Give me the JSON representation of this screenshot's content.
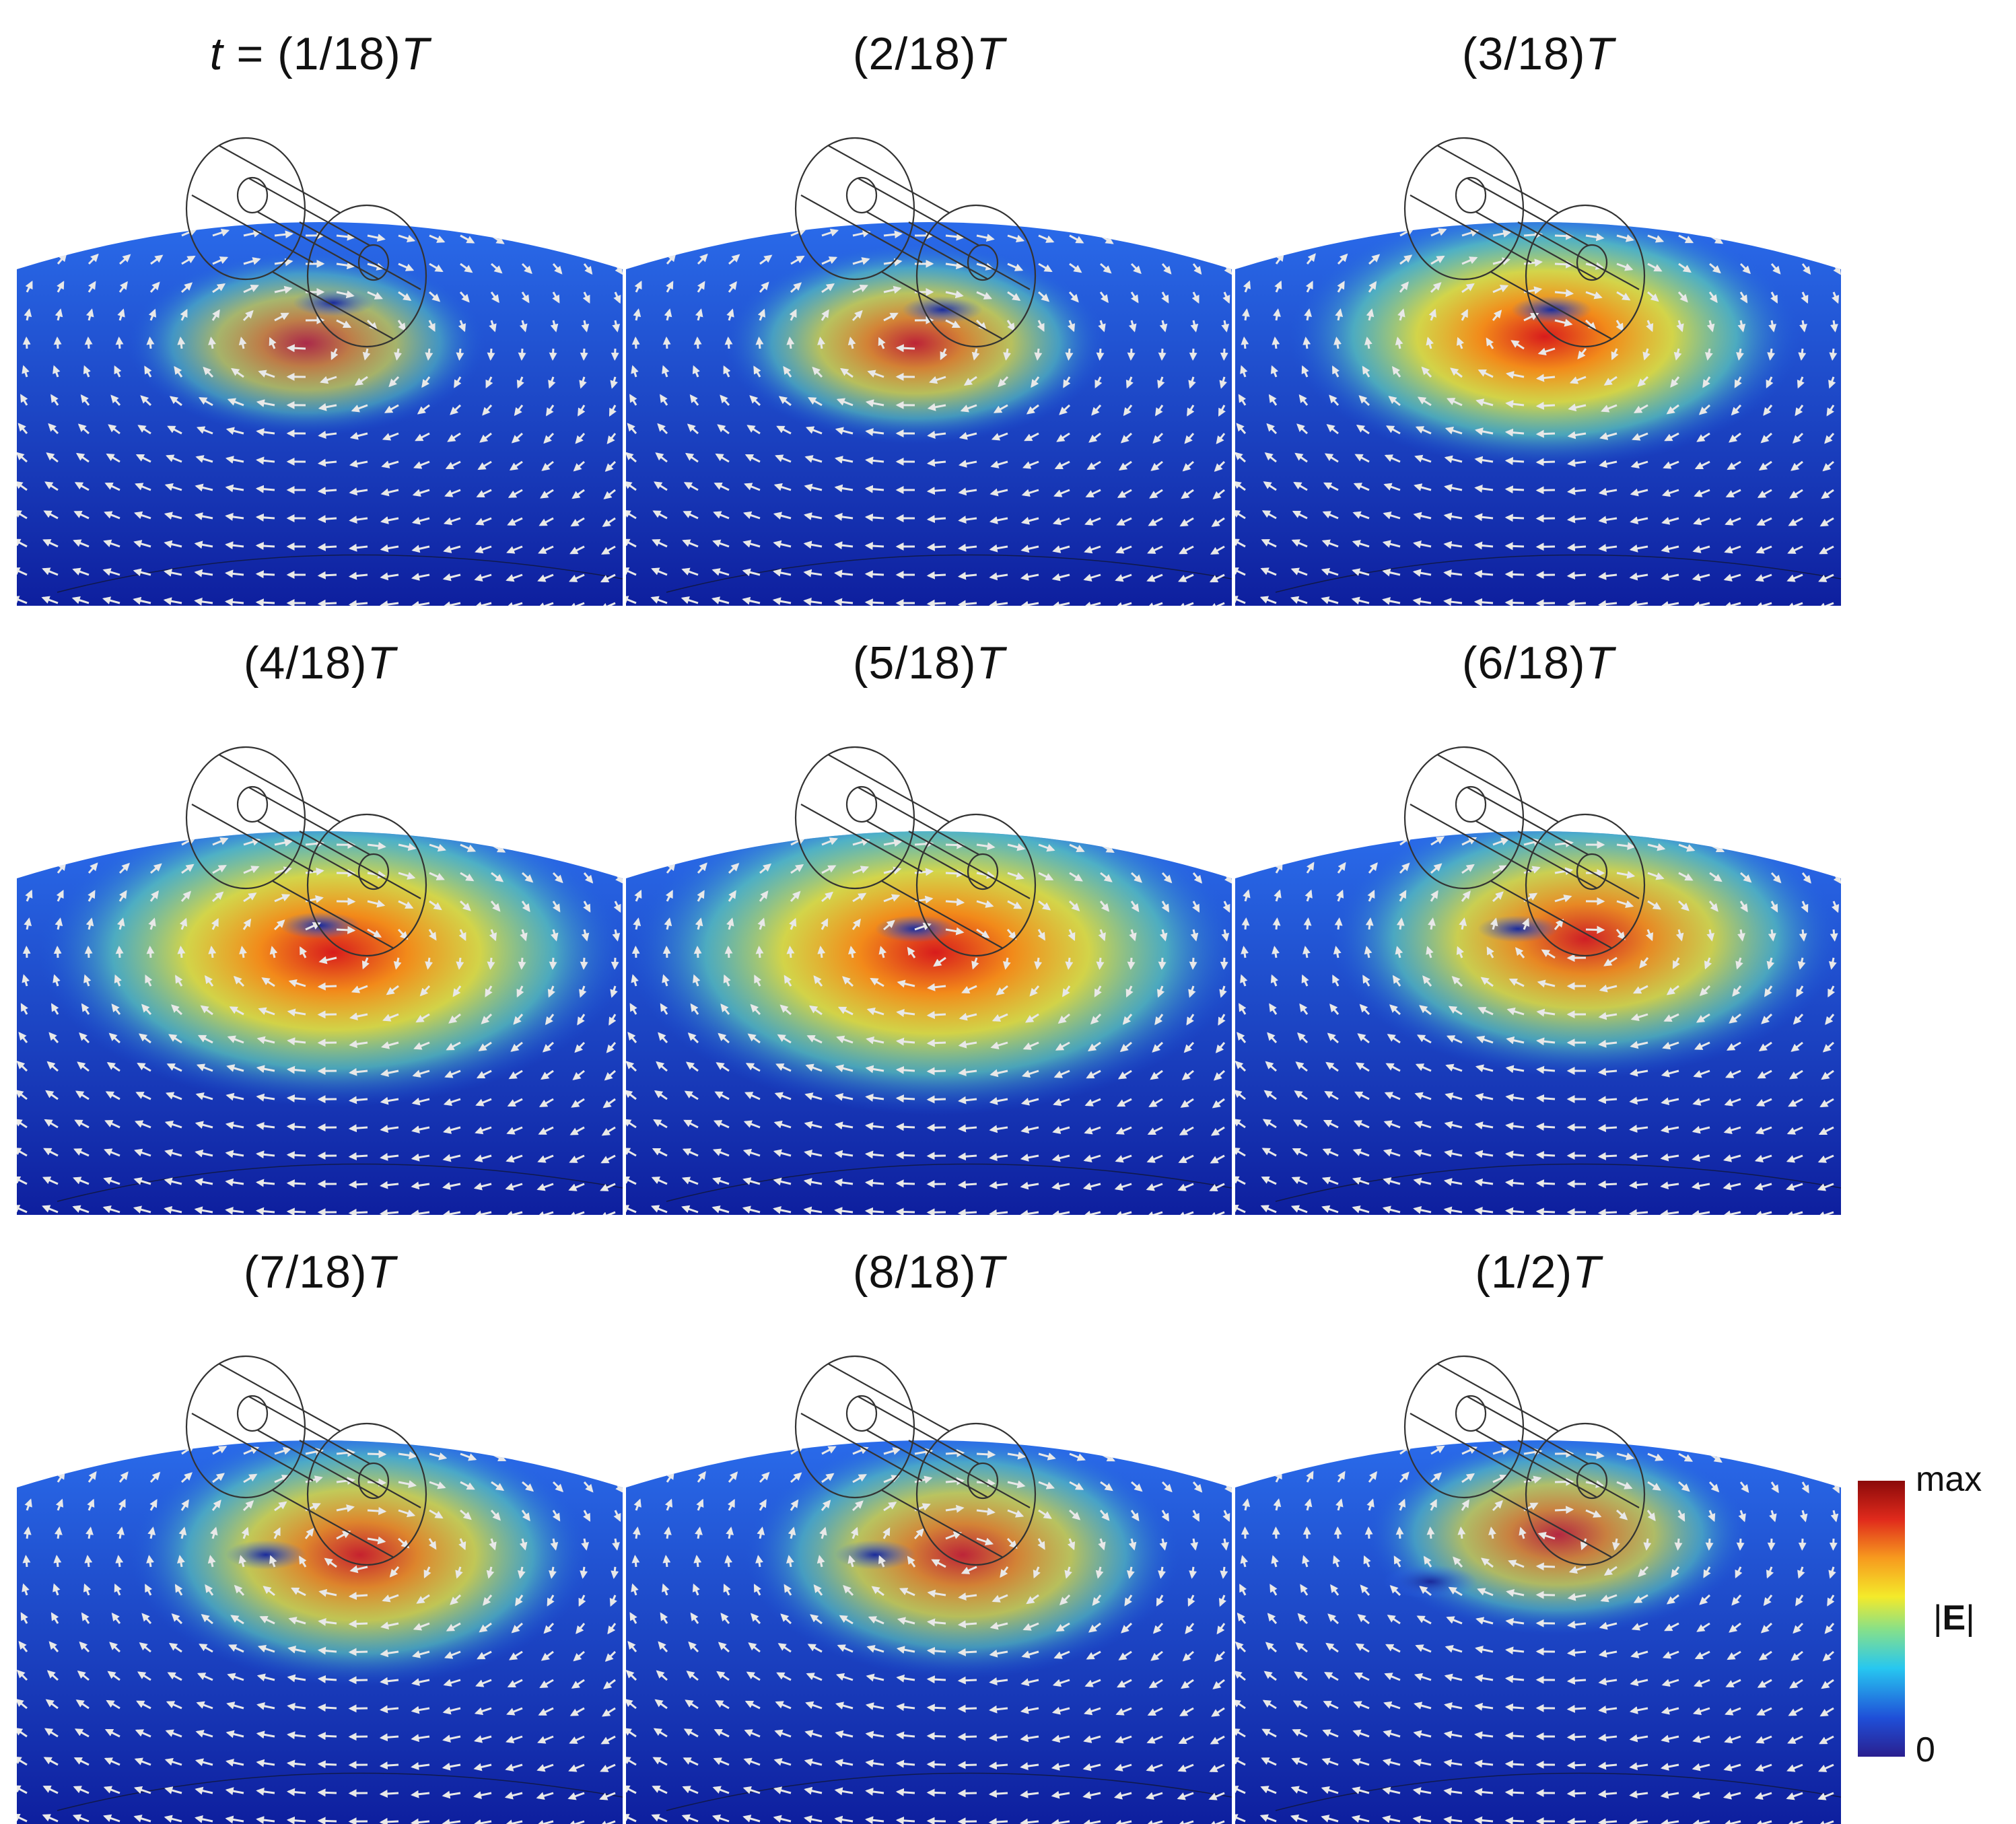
{
  "panels": [
    {
      "prefix": "t = ",
      "label": "(1/18)",
      "var": "T"
    },
    {
      "prefix": "",
      "label": "(2/18)",
      "var": "T"
    },
    {
      "prefix": "",
      "label": "(3/18)",
      "var": "T"
    },
    {
      "prefix": "",
      "label": "(4/18)",
      "var": "T"
    },
    {
      "prefix": "",
      "label": "(5/18)",
      "var": "T"
    },
    {
      "prefix": "",
      "label": "(6/18)",
      "var": "T"
    },
    {
      "prefix": "",
      "label": "(7/18)",
      "var": "T"
    },
    {
      "prefix": "",
      "label": "(8/18)",
      "var": "T"
    },
    {
      "prefix": "",
      "label": "(1/2)",
      "var": "T"
    }
  ],
  "colorbar": {
    "max_label": "max",
    "min_label": "0",
    "quantity_open": "|",
    "quantity_symbol": "E",
    "quantity_close": "|",
    "colors": [
      "#2a1f8f",
      "#1f4fd8",
      "#27c7f0",
      "#86e08a",
      "#f4ea2a",
      "#f79a1e",
      "#e02a1c",
      "#8b0a0a"
    ]
  }
}
